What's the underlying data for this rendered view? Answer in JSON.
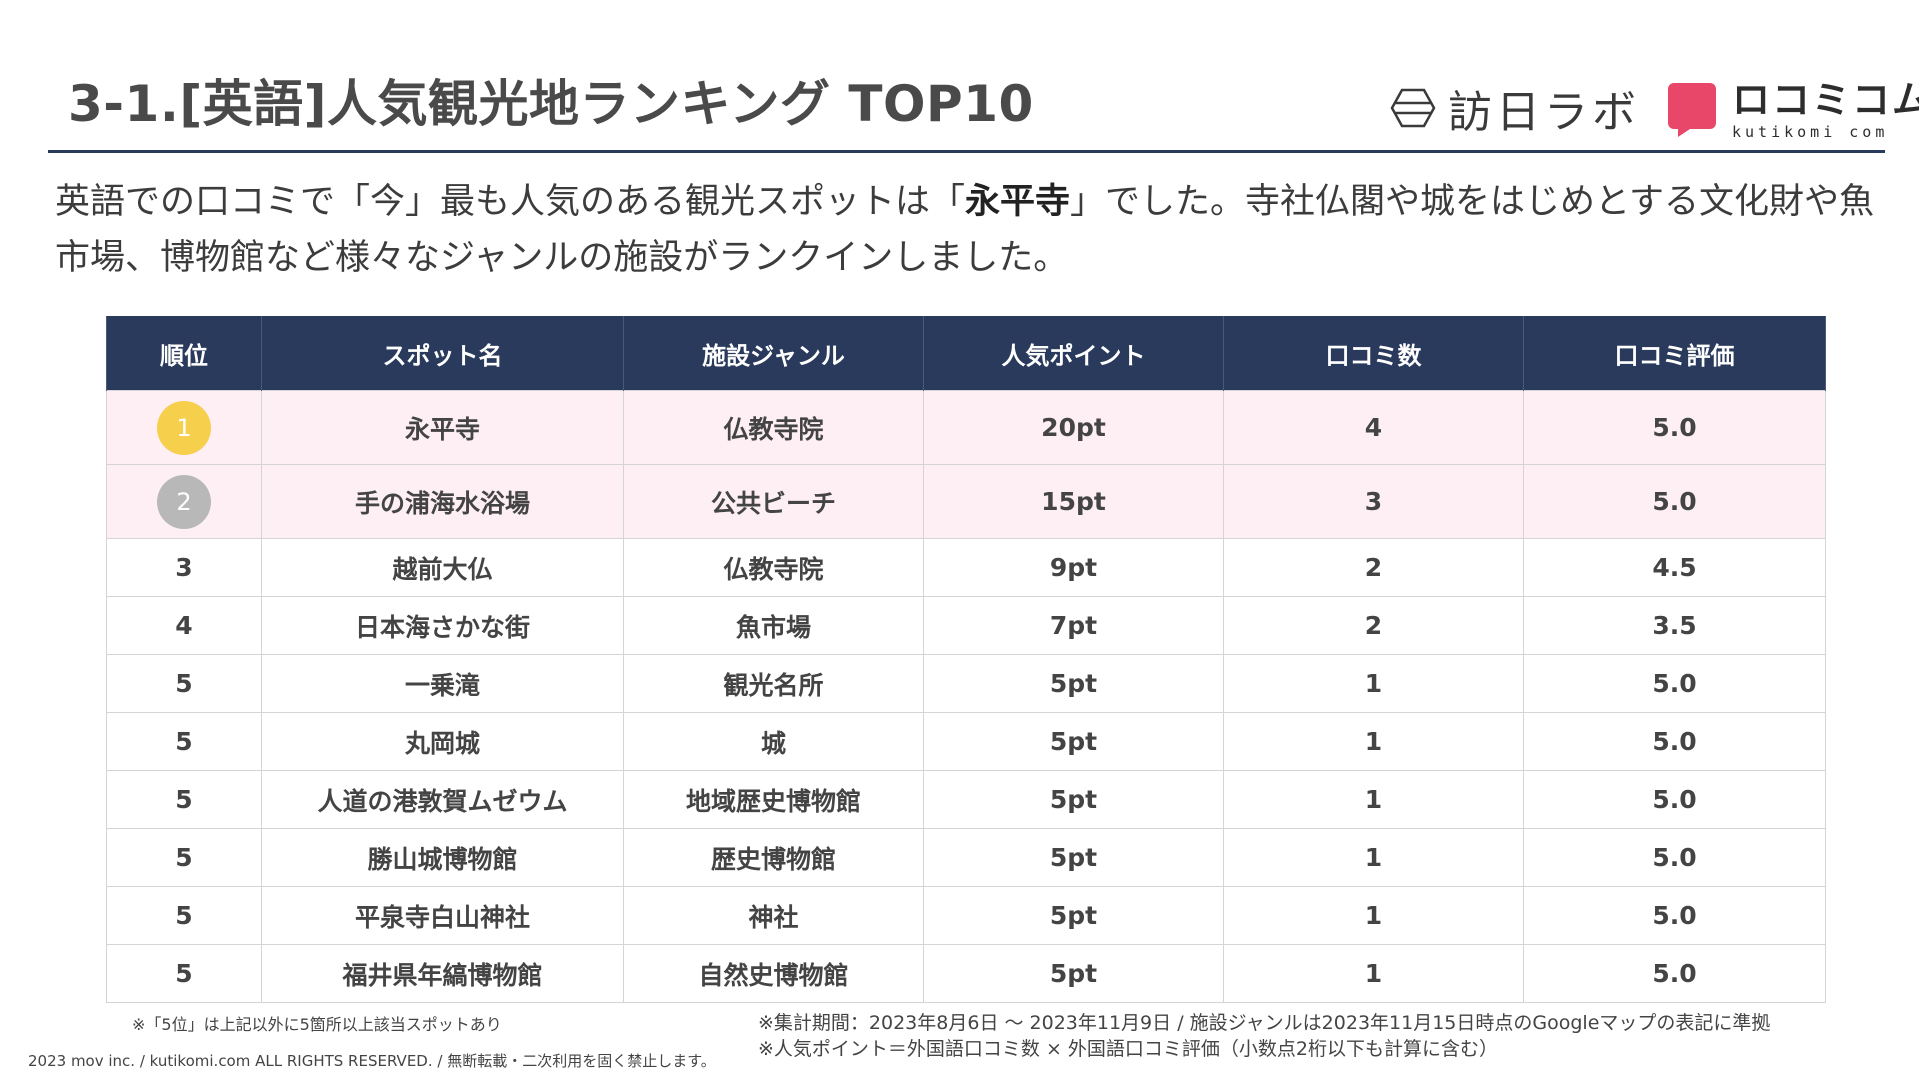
{
  "header": {
    "title": "3-1.[英語]人気観光地ランキング TOP10",
    "logo_homon": "訪日ラボ",
    "logo_kuchikomi_main": "ロコミコム",
    "logo_kuchikomi_sub": "kutikomi com",
    "accent_color": "#2a3a5c",
    "badge_color": "#e8476a"
  },
  "lead": {
    "part1": "英語での口コミで「今」最も人気のある観光スポットは「",
    "highlight": "永平寺",
    "part2": "」でした。寺社仏閣や城をはじめとする文化財や魚市場、博物館など様々なジャンルの施設がランクインしました。"
  },
  "table": {
    "headers": [
      "順位",
      "スポット名",
      "施設ジャンル",
      "人気ポイント",
      "口コミ数",
      "口コミ評価"
    ],
    "rows": [
      {
        "rank": "1",
        "name": "永平寺",
        "genre": "仏教寺院",
        "points": "20pt",
        "count": "4",
        "rating": "5.0"
      },
      {
        "rank": "2",
        "name": "手の浦海水浴場",
        "genre": "公共ビーチ",
        "points": "15pt",
        "count": "3",
        "rating": "5.0"
      },
      {
        "rank": "3",
        "name": "越前大仏",
        "genre": "仏教寺院",
        "points": "9pt",
        "count": "2",
        "rating": "4.5"
      },
      {
        "rank": "4",
        "name": "日本海さかな街",
        "genre": "魚市場",
        "points": "7pt",
        "count": "2",
        "rating": "3.5"
      },
      {
        "rank": "5",
        "name": "一乗滝",
        "genre": "観光名所",
        "points": "5pt",
        "count": "1",
        "rating": "5.0"
      },
      {
        "rank": "5",
        "name": "丸岡城",
        "genre": "城",
        "points": "5pt",
        "count": "1",
        "rating": "5.0"
      },
      {
        "rank": "5",
        "name": "人道の港敦賀ムゼウム",
        "genre": "地域歴史博物館",
        "points": "5pt",
        "count": "1",
        "rating": "5.0"
      },
      {
        "rank": "5",
        "name": "勝山城博物館",
        "genre": "歴史博物館",
        "points": "5pt",
        "count": "1",
        "rating": "5.0"
      },
      {
        "rank": "5",
        "name": "平泉寺白山神社",
        "genre": "神社",
        "points": "5pt",
        "count": "1",
        "rating": "5.0"
      },
      {
        "rank": "5",
        "name": "福井県年縞博物館",
        "genre": "自然史博物館",
        "points": "5pt",
        "count": "1",
        "rating": "5.0"
      }
    ]
  },
  "notes": {
    "left": "※「5位」は上記以外に5箇所以上該当スポットあり",
    "right1": "※集計期間：2023年8月6日 〜 2023年11月9日 / 施設ジャンルは2023年11月15日時点のGoogleマップの表記に準拠",
    "right2": "※人気ポイント＝外国語口コミ数 × 外国語口コミ評価（小数点2桁以下も計算に含む）",
    "copyright": "2023 mov inc. / kutikomi.com ALL RIGHTS RESERVED. / 無断転載・二次利用を固く禁止します。"
  }
}
